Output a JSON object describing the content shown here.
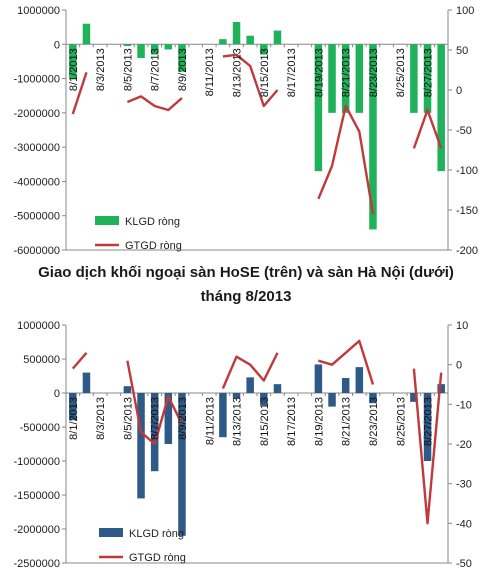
{
  "caption": {
    "line1": "Giao dịch khối ngoại sàn HoSE (trên) và sàn Hà Nội (dưới)",
    "line2": "tháng 8/2013"
  },
  "chart_data": [
    {
      "type": "bar+line",
      "title": "",
      "categories": [
        "8/1/2013",
        "8/2/2013",
        "8/3/2013",
        "8/4/2013",
        "8/5/2013",
        "8/6/2013",
        "8/7/2013",
        "8/8/2013",
        "8/9/2013",
        "8/10/2013",
        "8/11/2013",
        "8/12/2013",
        "8/13/2013",
        "8/14/2013",
        "8/15/2013",
        "8/16/2013",
        "8/17/2013",
        "8/18/2013",
        "8/19/2013",
        "8/20/2013",
        "8/21/2013",
        "8/22/2013",
        "8/23/2013",
        "8/24/2013",
        "8/25/2013",
        "8/26/2013",
        "8/27/2013",
        "8/28/2013"
      ],
      "x_tick_labels": [
        "8/1/2013",
        "8/3/2013",
        "8/5/2013",
        "8/7/2013",
        "8/9/2013",
        "8/11/2013",
        "8/13/2013",
        "8/15/2013",
        "8/17/2013",
        "8/19/2013",
        "8/21/2013",
        "8/23/2013",
        "8/25/2013",
        "8/27/2013"
      ],
      "y_left": {
        "ylim": [
          -6000000,
          1000000
        ],
        "ticks": [
          1000000,
          0,
          -1000000,
          -2000000,
          -3000000,
          -4000000,
          -5000000,
          -6000000
        ],
        "tick_labels": [
          "1000000",
          "0",
          "-1000000",
          "-2000000",
          "-3000000",
          "-4000000",
          "-5000000",
          "-6000000"
        ]
      },
      "y_right": {
        "ylim": [
          -200,
          100
        ],
        "ticks": [
          100,
          50,
          0,
          -50,
          -100,
          -150,
          -200
        ],
        "tick_labels": [
          "100",
          "50",
          "0",
          "-50",
          "-100",
          "-150",
          "-200"
        ]
      },
      "series": [
        {
          "name": "KLGD ròng",
          "kind": "bar",
          "axis": "left",
          "color": "#1fb25a",
          "values": [
            -1000000,
            600000,
            null,
            null,
            -50000,
            -400000,
            -300000,
            -150000,
            -800000,
            null,
            null,
            150000,
            650000,
            250000,
            -300000,
            400000,
            null,
            null,
            -3700000,
            -2000000,
            -2000000,
            -2000000,
            -5400000,
            null,
            null,
            -2000000,
            -2000000,
            -3700000
          ]
        },
        {
          "name": "GTGD ròng",
          "kind": "line",
          "axis": "right",
          "color": "#c0393b",
          "values": [
            -30,
            22,
            null,
            null,
            -15,
            -8,
            -20,
            -25,
            -10,
            null,
            null,
            42,
            44,
            30,
            -20,
            0,
            null,
            null,
            -136,
            -95,
            -20,
            -52,
            -155,
            null,
            null,
            -73,
            -25,
            -73
          ]
        }
      ],
      "legend": {
        "placement": "bottom-left"
      },
      "grid": false
    },
    {
      "type": "bar+line",
      "title": "",
      "categories": [
        "8/1/2013",
        "8/2/2013",
        "8/3/2013",
        "8/4/2013",
        "8/5/2013",
        "8/6/2013",
        "8/7/2013",
        "8/8/2013",
        "8/9/2013",
        "8/10/2013",
        "8/11/2013",
        "8/12/2013",
        "8/13/2013",
        "8/14/2013",
        "8/15/2013",
        "8/16/2013",
        "8/17/2013",
        "8/18/2013",
        "8/19/2013",
        "8/20/2013",
        "8/21/2013",
        "8/22/2013",
        "8/23/2013",
        "8/24/2013",
        "8/25/2013",
        "8/26/2013",
        "8/27/2013",
        "8/28/2013"
      ],
      "x_tick_labels": [
        "8/1/2013",
        "8/3/2013",
        "8/5/2013",
        "8/7/2013",
        "8/9/2013",
        "8/11/2013",
        "8/13/2013",
        "8/15/2013",
        "8/17/2013",
        "8/19/2013",
        "8/21/2013",
        "8/23/2013",
        "8/25/2013",
        "8/27/2013"
      ],
      "y_left": {
        "ylim": [
          -2500000,
          1000000
        ],
        "ticks": [
          1000000,
          500000,
          0,
          -500000,
          -1000000,
          -1500000,
          -2000000,
          -2500000
        ],
        "tick_labels": [
          "1000000",
          "500000",
          "0",
          "-500000",
          "-1000000",
          "-1500000",
          "-2000000",
          "-2500000"
        ]
      },
      "y_right": {
        "ylim": [
          -50,
          10
        ],
        "ticks": [
          10,
          0,
          -10,
          -20,
          -30,
          -40,
          -50
        ],
        "tick_labels": [
          "10",
          "0",
          "-10",
          "-20",
          "-30",
          "-40",
          "-50"
        ]
      },
      "series": [
        {
          "name": "KLGD ròng",
          "kind": "bar",
          "axis": "left",
          "color": "#2e5a87",
          "values": [
            -400000,
            300000,
            null,
            null,
            100000,
            -1550000,
            -1150000,
            -750000,
            -2100000,
            null,
            null,
            -650000,
            -80000,
            230000,
            -180000,
            130000,
            null,
            null,
            420000,
            -200000,
            220000,
            380000,
            -150000,
            null,
            null,
            -130000,
            -1000000,
            130000
          ]
        },
        {
          "name": "GTGD ròng",
          "kind": "line",
          "axis": "right",
          "color": "#c0393b",
          "values": [
            -1,
            3,
            null,
            null,
            1,
            -17,
            -20,
            -8,
            -15,
            null,
            null,
            -6,
            2,
            0,
            -4,
            3,
            null,
            null,
            1,
            0,
            3,
            6,
            -5,
            null,
            null,
            -1,
            -40,
            -2
          ]
        }
      ],
      "legend": {
        "placement": "bottom-left"
      },
      "grid": false
    }
  ]
}
